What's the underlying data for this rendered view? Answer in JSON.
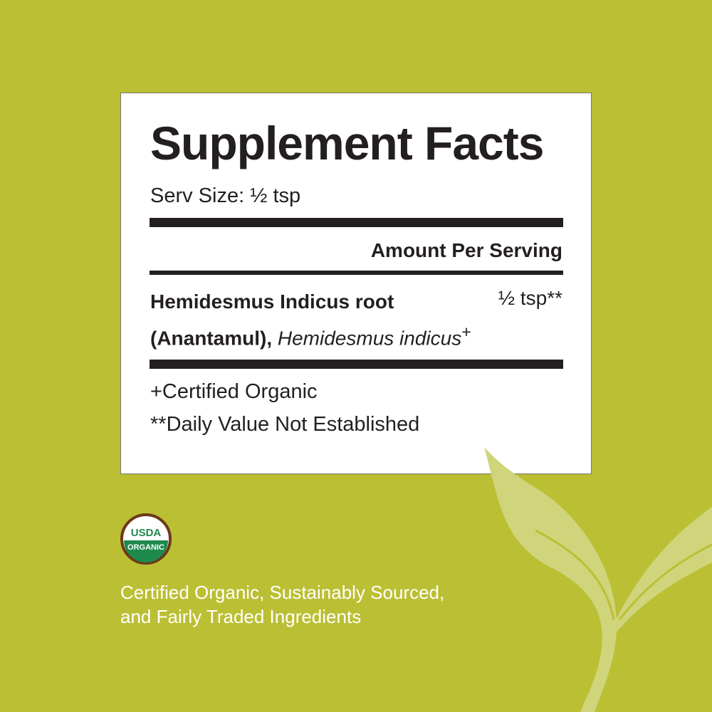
{
  "panel": {
    "title": "Supplement Facts",
    "serving_size": "Serv Size: ½ tsp",
    "amount_header": "Amount Per Serving",
    "ingredient": {
      "name_bold_1": "Hemidesmus Indicus root",
      "name_bold_2": "(Anantamul),",
      "latin": "Hemidesmus indicus",
      "mark": "+",
      "amount": "½ tsp**"
    },
    "footnotes": [
      "+Certified Organic",
      "**Daily Value Not Established"
    ]
  },
  "seal": {
    "top": "USDA",
    "bottom": "ORGANIC"
  },
  "tagline": [
    "Certified Organic, Sustainably Sourced,",
    "and Fairly Traded Ingredients"
  ],
  "colors": {
    "background": "#bbbf33",
    "leaf": "#d0d47a",
    "seal_green": "#1e8a4c",
    "seal_brown": "#6b3a1a"
  }
}
